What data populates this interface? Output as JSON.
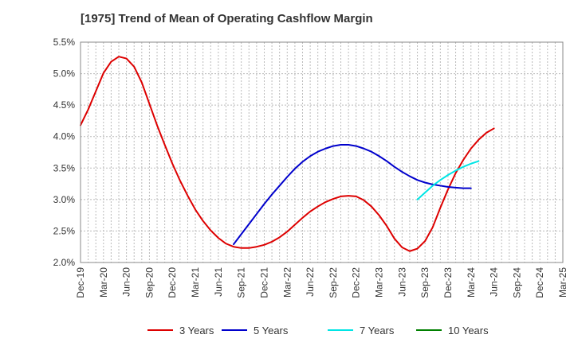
{
  "chart_data": {
    "type": "line",
    "title": "[1975]  Trend of Mean of Operating Cashflow Margin",
    "xlabel": "",
    "ylabel": "",
    "ylim": [
      2.0,
      5.5
    ],
    "yticks": [
      "2.0%",
      "2.5%",
      "3.0%",
      "3.5%",
      "4.0%",
      "4.5%",
      "5.0%",
      "5.5%"
    ],
    "ytick_values": [
      2.0,
      2.5,
      3.0,
      3.5,
      4.0,
      4.5,
      5.0,
      5.5
    ],
    "x_ticks": [
      "Dec-19",
      "Mar-20",
      "Jun-20",
      "Sep-20",
      "Dec-20",
      "Mar-21",
      "Jun-21",
      "Sep-21",
      "Dec-21",
      "Mar-22",
      "Jun-22",
      "Sep-22",
      "Dec-22",
      "Mar-23",
      "Jun-23",
      "Sep-23",
      "Dec-23",
      "Mar-24",
      "Jun-24",
      "Sep-24",
      "Dec-24",
      "Mar-25"
    ],
    "x_unit": "month",
    "grid": true,
    "legend_position": "bottom",
    "series": [
      {
        "name": "3 Years",
        "color": "#dd0000",
        "start": "Dec-19",
        "values": [
          4.18,
          4.43,
          4.72,
          5.01,
          5.19,
          5.27,
          5.24,
          5.11,
          4.86,
          4.52,
          4.18,
          3.87,
          3.57,
          3.3,
          3.06,
          2.84,
          2.66,
          2.51,
          2.39,
          2.3,
          2.25,
          2.23,
          2.23,
          2.25,
          2.28,
          2.33,
          2.4,
          2.49,
          2.6,
          2.71,
          2.81,
          2.89,
          2.96,
          3.01,
          3.05,
          3.06,
          3.05,
          2.99,
          2.89,
          2.75,
          2.58,
          2.38,
          2.24,
          2.18,
          2.22,
          2.34,
          2.56,
          2.87,
          3.16,
          3.42,
          3.63,
          3.81,
          3.95,
          4.06,
          4.13
        ]
      },
      {
        "name": "5 Years",
        "color": "#0000cc",
        "start": "Aug-21",
        "values": [
          2.29,
          2.45,
          2.61,
          2.77,
          2.93,
          3.08,
          3.22,
          3.36,
          3.49,
          3.6,
          3.69,
          3.76,
          3.81,
          3.85,
          3.87,
          3.87,
          3.85,
          3.81,
          3.76,
          3.69,
          3.61,
          3.52,
          3.44,
          3.37,
          3.31,
          3.27,
          3.24,
          3.22,
          3.2,
          3.19,
          3.18,
          3.18
        ]
      },
      {
        "name": "7 Years",
        "color": "#00e5e5",
        "start": "Aug-23",
        "values": [
          3.0,
          3.11,
          3.22,
          3.31,
          3.39,
          3.46,
          3.52,
          3.57,
          3.61
        ]
      },
      {
        "name": "10 Years",
        "color": "#008000",
        "start": "Mar-24",
        "values": []
      }
    ]
  }
}
